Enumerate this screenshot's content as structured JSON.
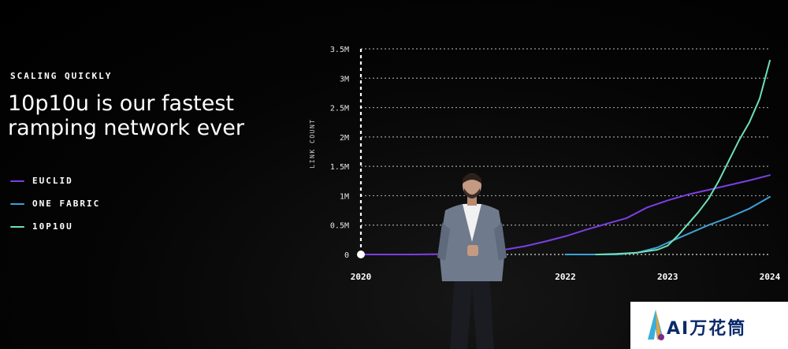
{
  "slide": {
    "eyebrow": "SCALING QUICKLY",
    "headline_line1": "10p10u is our fastest",
    "headline_line2": "ramping network ever"
  },
  "legend": [
    {
      "label": "EUCLID",
      "color": "#7b3fe4"
    },
    {
      "label": "ONE FABRIC",
      "color": "#3fa0d8"
    },
    {
      "label": "10P10U",
      "color": "#6fe0b4"
    }
  ],
  "watermark": {
    "text": "AI万花筒"
  },
  "chart_data": {
    "type": "line",
    "ylabel": "LINK COUNT",
    "xlabel": "",
    "xlim": [
      2020,
      2024
    ],
    "ylim": [
      0,
      3.5
    ],
    "x_ticks": [
      2020,
      2022,
      2023,
      2024
    ],
    "y_ticks": [
      0,
      0.5,
      1,
      1.5,
      2,
      2.5,
      3,
      3.5
    ],
    "y_tick_labels": [
      "0",
      "0.5M",
      "1M",
      "1.5M",
      "2M",
      "2.5M",
      "3M",
      "3.5M"
    ],
    "grid": "horizontal-dashed",
    "series": [
      {
        "name": "EUCLID",
        "color": "#7b3fe4",
        "x": [
          2020,
          2020.5,
          2021,
          2021.2,
          2021.4,
          2021.6,
          2021.8,
          2022,
          2022.2,
          2022.4,
          2022.6,
          2022.8,
          2023,
          2023.2,
          2023.4,
          2023.6,
          2023.8,
          2024
        ],
        "y": [
          0,
          0,
          0.01,
          0.04,
          0.08,
          0.14,
          0.22,
          0.31,
          0.42,
          0.52,
          0.62,
          0.8,
          0.92,
          1.02,
          1.1,
          1.18,
          1.26,
          1.35
        ]
      },
      {
        "name": "ONE FABRIC",
        "color": "#3fa0d8",
        "x": [
          2022,
          2022.3,
          2022.5,
          2022.7,
          2022.9,
          2023,
          2023.2,
          2023.4,
          2023.6,
          2023.8,
          2024
        ],
        "y": [
          0,
          0,
          0,
          0.03,
          0.12,
          0.2,
          0.35,
          0.5,
          0.63,
          0.78,
          0.98
        ]
      },
      {
        "name": "10P10U",
        "color": "#6fe0b4",
        "x": [
          2022.3,
          2022.5,
          2022.7,
          2022.9,
          2023,
          2023.1,
          2023.2,
          2023.3,
          2023.4,
          2023.5,
          2023.6,
          2023.7,
          2023.8,
          2023.9,
          2024
        ],
        "y": [
          0,
          0.01,
          0.03,
          0.08,
          0.15,
          0.32,
          0.52,
          0.72,
          0.95,
          1.25,
          1.6,
          1.95,
          2.25,
          2.65,
          3.3
        ]
      }
    ]
  }
}
